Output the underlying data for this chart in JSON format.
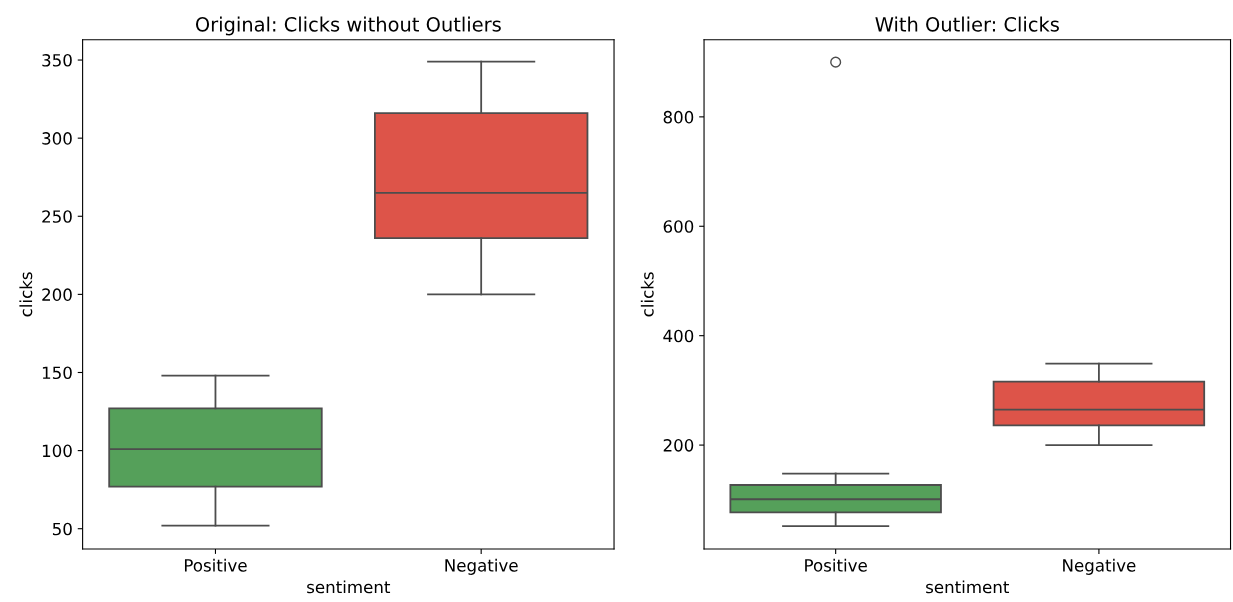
{
  "chart_data": [
    {
      "type": "box",
      "title": "Original: Clicks without Outliers",
      "xlabel": "sentiment",
      "ylabel": "clicks",
      "categories": [
        "Positive",
        "Negative"
      ],
      "colors": [
        "#55a05a",
        "#dd5449"
      ],
      "boxes": [
        {
          "low": 52,
          "q1": 77,
          "median": 101,
          "q3": 127,
          "high": 148
        },
        {
          "low": 200,
          "q1": 236,
          "median": 265,
          "q3": 316,
          "high": 349
        }
      ],
      "ylim": [
        37,
        363
      ],
      "yticks": [
        50,
        100,
        150,
        200,
        250,
        300,
        350
      ],
      "grid": false
    },
    {
      "type": "box",
      "title": "With Outlier: Clicks",
      "xlabel": "sentiment",
      "ylabel": "clicks",
      "categories": [
        "Positive",
        "Negative"
      ],
      "colors": [
        "#55a05a",
        "#dd5449"
      ],
      "boxes": [
        {
          "low": 52,
          "q1": 77,
          "median": 101,
          "q3": 127,
          "high": 148,
          "outliers": [
            900
          ]
        },
        {
          "low": 200,
          "q1": 236,
          "median": 265,
          "q3": 316,
          "high": 349
        }
      ],
      "ylim": [
        10,
        941
      ],
      "yticks": [
        200,
        400,
        600,
        800
      ],
      "grid": false
    }
  ]
}
